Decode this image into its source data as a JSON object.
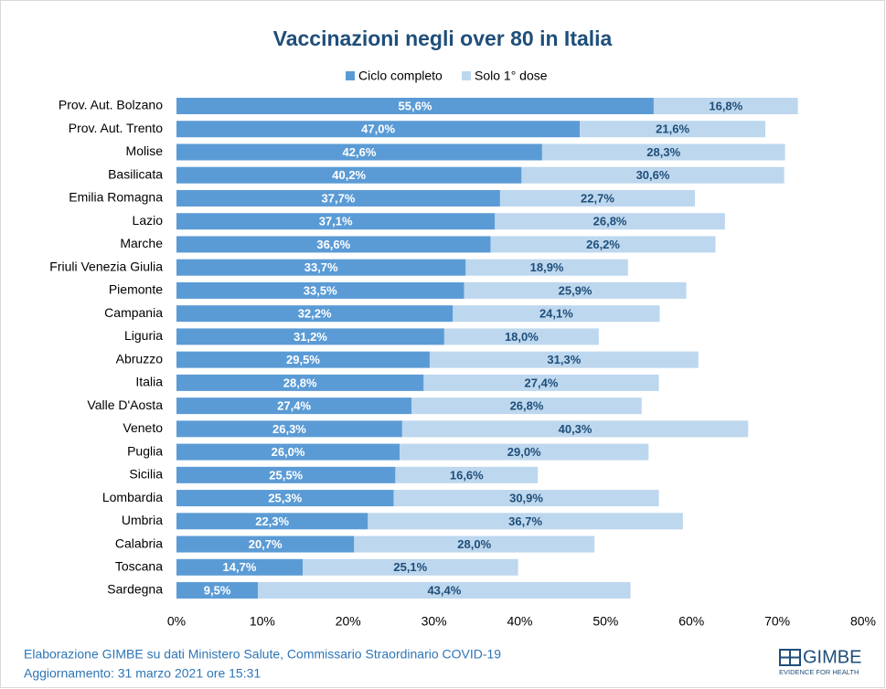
{
  "chart_data": {
    "type": "stacked_barh",
    "title": "Vaccinazioni negli over 80 in Italia",
    "categories": [
      "Prov. Aut. Bolzano",
      "Prov. Aut. Trento",
      "Molise",
      "Basilicata",
      "Emilia Romagna",
      "Lazio",
      "Marche",
      "Friuli Venezia Giulia",
      "Piemonte",
      "Campania",
      "Liguria",
      "Abruzzo",
      "Italia",
      "Valle D'Aosta",
      "Veneto",
      "Puglia",
      "Sicilia",
      "Lombardia",
      "Umbria",
      "Calabria",
      "Toscana",
      "Sardegna"
    ],
    "series": [
      {
        "name": "Ciclo completo",
        "color": "#5b9bd5",
        "label_color": "#ffffff",
        "values": [
          55.6,
          47.0,
          42.6,
          40.2,
          37.7,
          37.1,
          36.6,
          33.7,
          33.5,
          32.2,
          31.2,
          29.5,
          28.8,
          27.4,
          26.3,
          26.0,
          25.5,
          25.3,
          22.3,
          20.7,
          14.7,
          9.5
        ],
        "value_labels": [
          "55,6%",
          "47,0%",
          "42,6%",
          "40,2%",
          "37,7%",
          "37,1%",
          "36,6%",
          "33,7%",
          "33,5%",
          "32,2%",
          "31,2%",
          "29,5%",
          "28,8%",
          "27,4%",
          "26,3%",
          "26,0%",
          "25,5%",
          "25,3%",
          "22,3%",
          "20,7%",
          "14,7%",
          "9,5%"
        ]
      },
      {
        "name": "Solo 1° dose",
        "color": "#bdd7ee",
        "label_color": "#1f4e79",
        "values": [
          16.8,
          21.6,
          28.3,
          30.6,
          22.7,
          26.8,
          26.2,
          18.9,
          25.9,
          24.1,
          18.0,
          31.3,
          27.4,
          26.8,
          40.3,
          29.0,
          16.6,
          30.9,
          36.7,
          28.0,
          25.1,
          43.4
        ],
        "value_labels": [
          "16,8%",
          "21,6%",
          "28,3%",
          "30,6%",
          "22,7%",
          "26,8%",
          "26,2%",
          "18,9%",
          "25,9%",
          "24,1%",
          "18,0%",
          "31,3%",
          "27,4%",
          "26,8%",
          "40,3%",
          "29,0%",
          "16,6%",
          "30,9%",
          "36,7%",
          "28,0%",
          "25,1%",
          "43,4%"
        ]
      }
    ],
    "xlim": [
      0,
      80
    ],
    "xticks": [
      {
        "value": 0,
        "label": "0%"
      },
      {
        "value": 10,
        "label": "10%"
      },
      {
        "value": 20,
        "label": "20%"
      },
      {
        "value": 30,
        "label": "30%"
      },
      {
        "value": 40,
        "label": "40%"
      },
      {
        "value": 50,
        "label": "50%"
      },
      {
        "value": 60,
        "label": "60%"
      },
      {
        "value": 70,
        "label": "70%"
      },
      {
        "value": 80,
        "label": "80%"
      }
    ],
    "grid": false,
    "legend": "top",
    "source": "Elaborazione GIMBE su dati Ministero Salute, Commissario Straordinario COVID-19",
    "updated": "Aggiornamento: 31 marzo 2021 ore 15:31",
    "logo": {
      "text": "GIMBE",
      "tagline": "EVIDENCE FOR HEALTH"
    }
  }
}
